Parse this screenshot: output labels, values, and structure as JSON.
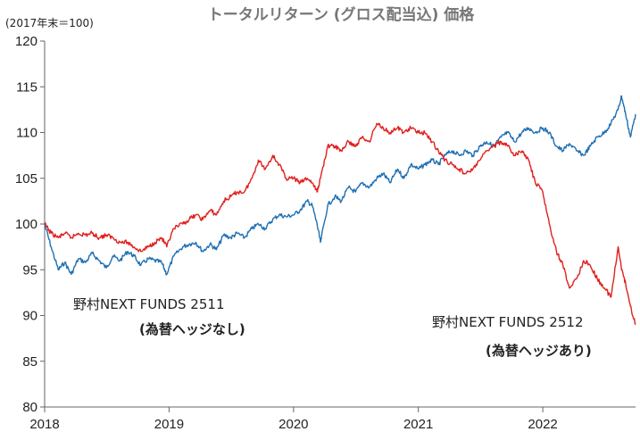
{
  "chart_data": {
    "type": "line",
    "title": "トータルリターン (グロス配当込) 価格",
    "unit_label": "(2017年末＝100)",
    "xlabel": "",
    "ylabel": "",
    "ylim": [
      80,
      120
    ],
    "yticks": [
      80,
      85,
      90,
      95,
      100,
      105,
      110,
      115,
      120
    ],
    "xlim": [
      "2018-01-01",
      "2022-09-30"
    ],
    "xticks": [
      "2018",
      "2019",
      "2020",
      "2021",
      "2022"
    ],
    "grid": false,
    "series": [
      {
        "name": "野村NEXT FUNDS 2511",
        "sublabel": "(為替ヘッジなし)",
        "color": "#1f6fb2",
        "x": [
          "2018-01-01",
          "2018-01-20",
          "2018-02-10",
          "2018-03-01",
          "2018-03-20",
          "2018-04-10",
          "2018-05-01",
          "2018-05-20",
          "2018-06-10",
          "2018-07-01",
          "2018-07-20",
          "2018-08-10",
          "2018-09-01",
          "2018-09-20",
          "2018-10-10",
          "2018-11-01",
          "2018-11-20",
          "2018-12-10",
          "2018-12-25",
          "2019-01-15",
          "2019-02-10",
          "2019-03-01",
          "2019-03-20",
          "2019-04-10",
          "2019-05-01",
          "2019-05-20",
          "2019-06-10",
          "2019-07-01",
          "2019-07-20",
          "2019-08-10",
          "2019-09-01",
          "2019-09-20",
          "2019-10-10",
          "2019-11-01",
          "2019-11-20",
          "2019-12-10",
          "2020-01-01",
          "2020-01-20",
          "2020-02-10",
          "2020-02-25",
          "2020-03-10",
          "2020-03-20",
          "2020-04-10",
          "2020-05-01",
          "2020-05-20",
          "2020-06-10",
          "2020-07-01",
          "2020-07-20",
          "2020-08-10",
          "2020-09-01",
          "2020-09-20",
          "2020-10-10",
          "2020-11-01",
          "2020-11-20",
          "2020-12-10",
          "2021-01-01",
          "2021-01-20",
          "2021-02-10",
          "2021-03-01",
          "2021-03-20",
          "2021-04-10",
          "2021-05-01",
          "2021-05-20",
          "2021-06-10",
          "2021-07-01",
          "2021-07-20",
          "2021-08-10",
          "2021-09-01",
          "2021-09-20",
          "2021-10-10",
          "2021-11-01",
          "2021-11-20",
          "2021-12-10",
          "2022-01-01",
          "2022-01-20",
          "2022-02-10",
          "2022-03-01",
          "2022-03-20",
          "2022-04-10",
          "2022-05-01",
          "2022-05-20",
          "2022-06-10",
          "2022-07-01",
          "2022-07-20",
          "2022-08-10",
          "2022-08-20",
          "2022-09-01",
          "2022-09-15",
          "2022-09-30"
        ],
        "values": [
          100.0,
          97.5,
          95.0,
          95.8,
          94.5,
          96.2,
          95.8,
          96.8,
          96.0,
          95.2,
          96.5,
          96.0,
          97.0,
          96.5,
          95.5,
          96.2,
          96.0,
          95.8,
          94.5,
          96.5,
          97.5,
          97.8,
          98.0,
          97.0,
          97.8,
          97.2,
          98.8,
          98.5,
          99.0,
          98.5,
          99.5,
          100.0,
          99.5,
          100.5,
          101.0,
          100.8,
          101.0,
          101.5,
          102.5,
          102.0,
          100.0,
          98.0,
          102.0,
          103.0,
          102.5,
          104.0,
          103.5,
          104.5,
          104.0,
          105.0,
          105.5,
          104.5,
          106.0,
          105.0,
          106.5,
          106.0,
          106.5,
          107.0,
          106.5,
          107.5,
          108.0,
          107.5,
          108.0,
          107.5,
          108.5,
          109.0,
          108.5,
          109.5,
          110.0,
          109.0,
          110.0,
          110.5,
          110.0,
          110.5,
          110.0,
          108.5,
          108.0,
          108.8,
          108.0,
          107.5,
          108.5,
          109.5,
          110.0,
          111.0,
          112.5,
          114.0,
          112.0,
          109.5,
          112.0
        ]
      },
      {
        "name": "野村NEXT FUNDS 2512",
        "sublabel": "(為替ヘッジあり)",
        "color": "#e0201e",
        "x": [
          "2018-01-01",
          "2018-01-20",
          "2018-02-10",
          "2018-03-01",
          "2018-03-20",
          "2018-04-10",
          "2018-05-01",
          "2018-05-20",
          "2018-06-10",
          "2018-07-01",
          "2018-07-20",
          "2018-08-10",
          "2018-09-01",
          "2018-09-20",
          "2018-10-10",
          "2018-11-01",
          "2018-11-20",
          "2018-12-10",
          "2018-12-25",
          "2019-01-15",
          "2019-02-10",
          "2019-03-01",
          "2019-03-20",
          "2019-04-10",
          "2019-05-01",
          "2019-05-20",
          "2019-06-10",
          "2019-07-01",
          "2019-07-20",
          "2019-08-10",
          "2019-09-01",
          "2019-09-20",
          "2019-10-10",
          "2019-11-01",
          "2019-11-20",
          "2019-12-10",
          "2020-01-01",
          "2020-01-20",
          "2020-02-10",
          "2020-02-25",
          "2020-03-10",
          "2020-03-20",
          "2020-04-10",
          "2020-05-01",
          "2020-05-20",
          "2020-06-10",
          "2020-07-01",
          "2020-07-20",
          "2020-08-10",
          "2020-09-01",
          "2020-09-20",
          "2020-10-10",
          "2020-11-01",
          "2020-11-20",
          "2020-12-10",
          "2021-01-01",
          "2021-01-20",
          "2021-02-10",
          "2021-03-01",
          "2021-03-20",
          "2021-04-10",
          "2021-05-01",
          "2021-05-20",
          "2021-06-10",
          "2021-07-01",
          "2021-07-20",
          "2021-08-10",
          "2021-09-01",
          "2021-09-20",
          "2021-10-10",
          "2021-11-01",
          "2021-11-20",
          "2021-12-10",
          "2022-01-01",
          "2022-01-20",
          "2022-02-10",
          "2022-03-01",
          "2022-03-20",
          "2022-04-10",
          "2022-05-01",
          "2022-05-20",
          "2022-06-10",
          "2022-07-01",
          "2022-07-20",
          "2022-08-10",
          "2022-08-20",
          "2022-09-01",
          "2022-09-15",
          "2022-09-30"
        ],
        "values": [
          100.0,
          99.0,
          98.5,
          99.0,
          98.5,
          99.0,
          98.8,
          99.0,
          98.5,
          98.8,
          98.5,
          98.0,
          98.0,
          97.5,
          97.0,
          97.5,
          98.0,
          98.5,
          97.5,
          99.5,
          100.0,
          100.5,
          101.0,
          100.5,
          101.5,
          101.0,
          102.5,
          103.0,
          103.5,
          103.5,
          105.0,
          107.0,
          106.0,
          107.5,
          106.5,
          105.0,
          105.0,
          104.5,
          105.0,
          104.5,
          103.5,
          105.0,
          108.5,
          108.5,
          108.0,
          109.0,
          108.5,
          109.5,
          109.0,
          111.0,
          110.5,
          110.0,
          110.5,
          110.0,
          110.5,
          110.0,
          110.0,
          109.0,
          108.0,
          107.0,
          106.5,
          106.0,
          105.5,
          106.0,
          107.0,
          108.0,
          108.5,
          109.0,
          108.5,
          107.5,
          108.0,
          107.0,
          104.5,
          103.5,
          100.0,
          97.0,
          95.5,
          93.0,
          94.0,
          96.0,
          95.5,
          94.0,
          93.0,
          92.0,
          97.5,
          95.0,
          93.5,
          91.0,
          89.0
        ]
      }
    ]
  }
}
